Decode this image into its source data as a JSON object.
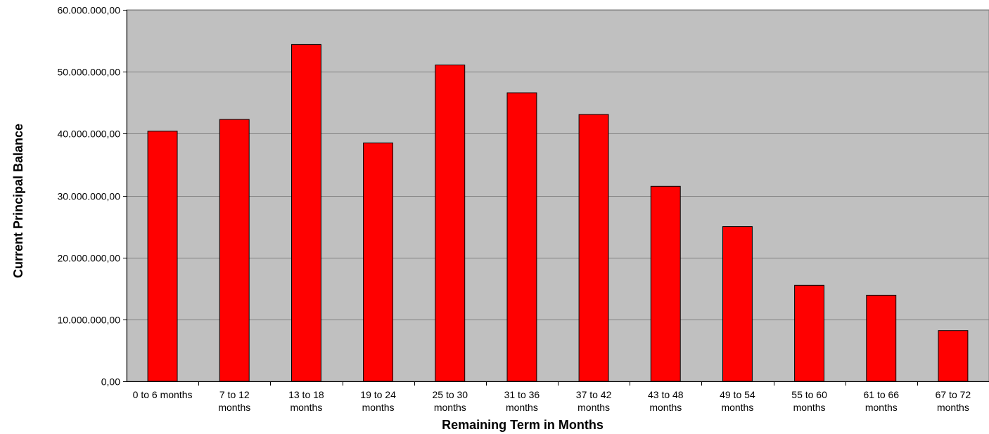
{
  "chart_data": {
    "type": "bar",
    "title": "",
    "xlabel": "Remaining Term in Months",
    "ylabel": "Current Principal Balance",
    "categories": [
      [
        "0 to 6 months"
      ],
      [
        "7 to 12",
        "months"
      ],
      [
        "13 to 18",
        "months"
      ],
      [
        "19 to 24",
        "months"
      ],
      [
        "25 to 30",
        "months"
      ],
      [
        "31 to 36",
        "months"
      ],
      [
        "37 to 42",
        "months"
      ],
      [
        "43 to 48",
        "months"
      ],
      [
        "49 to 54",
        "months"
      ],
      [
        "55 to 60",
        "months"
      ],
      [
        "61 to 66",
        "months"
      ],
      [
        "67 to 72",
        "months"
      ]
    ],
    "values": [
      40400000,
      42300000,
      54400000,
      38500000,
      51100000,
      46600000,
      43100000,
      31500000,
      25000000,
      15500000,
      13900000,
      8200000
    ],
    "ylim": [
      0,
      60000000
    ],
    "yticks": [
      0,
      10000000,
      20000000,
      30000000,
      40000000,
      50000000,
      60000000
    ],
    "ytick_labels": [
      "0,00",
      "10.000.000,00",
      "20.000.000,00",
      "30.000.000,00",
      "40.000.000,00",
      "50.000.000,00",
      "60.000.000,00"
    ],
    "grid": true,
    "legend": "none",
    "colors": {
      "bar_fill": "#ff0000",
      "bar_stroke": "#000000",
      "plot_background": "#c0c0c0",
      "gridline": "#808080"
    }
  }
}
